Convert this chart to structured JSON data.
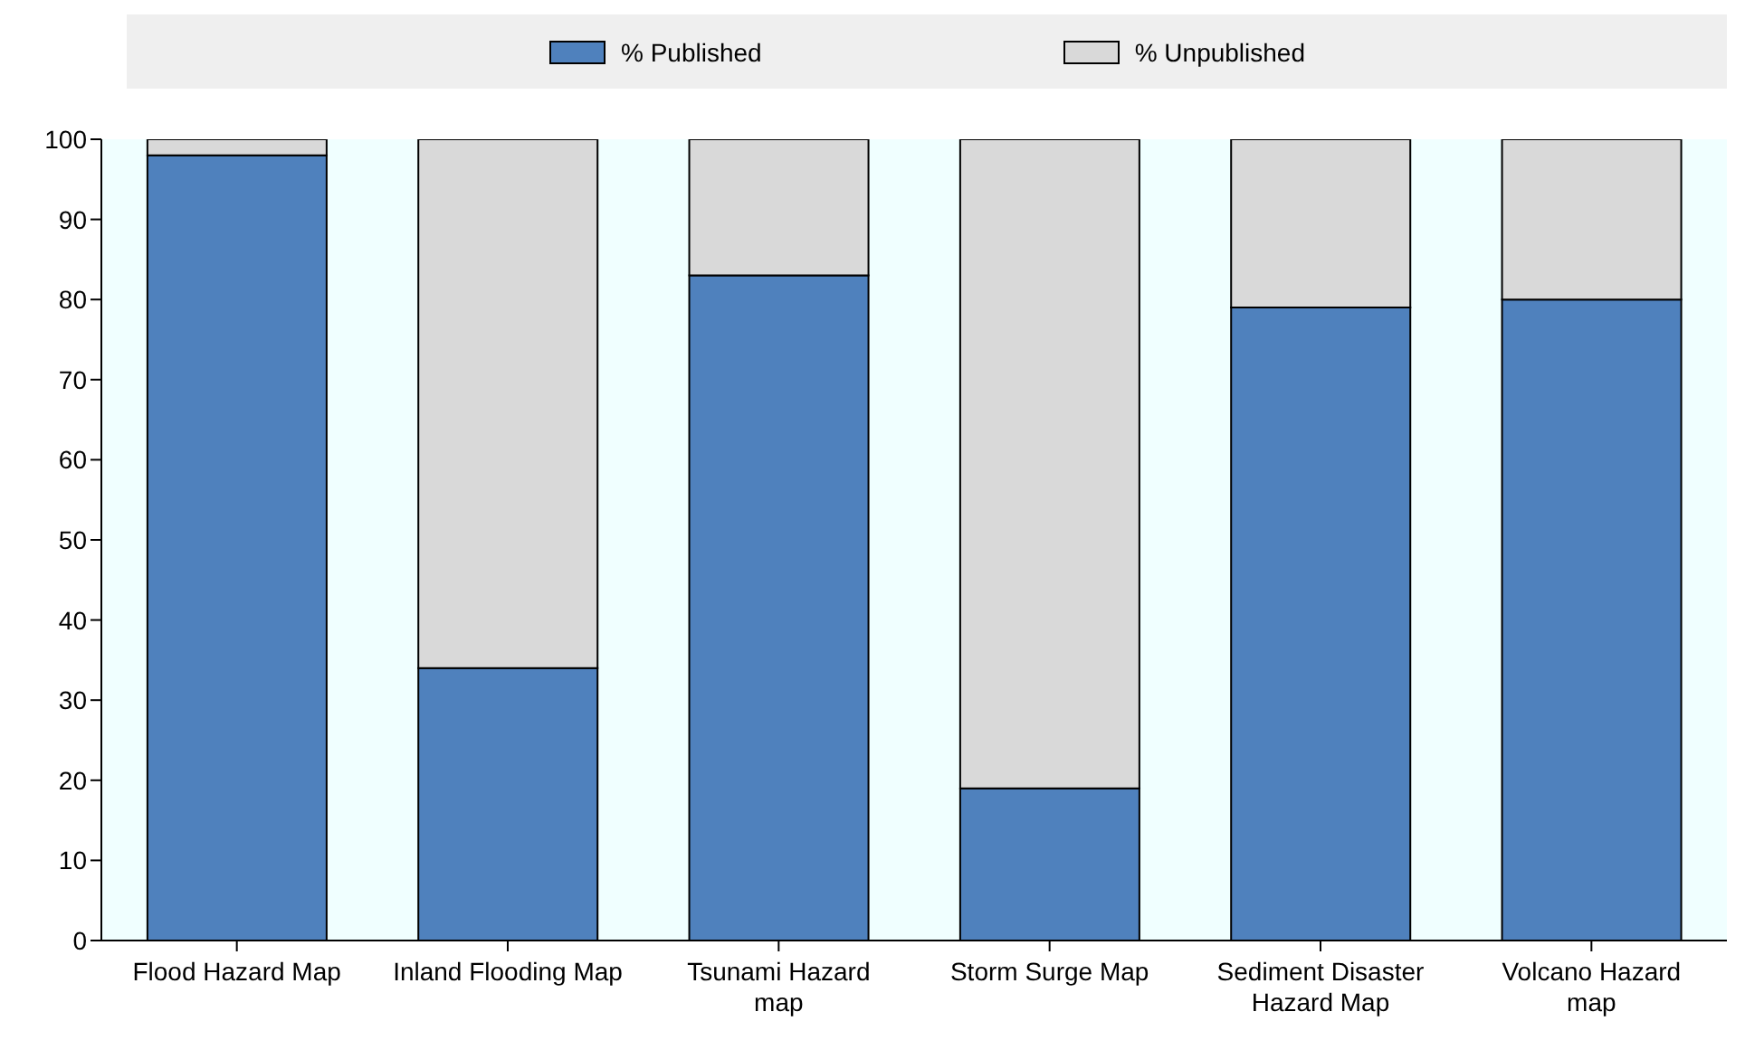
{
  "chart_data": {
    "type": "bar",
    "stacked": true,
    "categories": [
      "Flood Hazard Map",
      "Inland Flooding Map",
      "Tsunami Hazard map",
      "Storm Surge Map",
      "Sediment Disaster Hazard Map",
      "Volcano Hazard map"
    ],
    "series": [
      {
        "name": "% Published",
        "color": "#4f81bd",
        "values": [
          98,
          34,
          83,
          19,
          79,
          80
        ]
      },
      {
        "name": "% Unpublished",
        "color": "#d9d9d9",
        "values": [
          2,
          66,
          17,
          81,
          21,
          20
        ]
      }
    ],
    "ylim": [
      0,
      100
    ],
    "yticks": [
      0,
      10,
      20,
      30,
      40,
      50,
      60,
      70,
      80,
      90,
      100
    ],
    "grid": false,
    "legend": "top"
  }
}
